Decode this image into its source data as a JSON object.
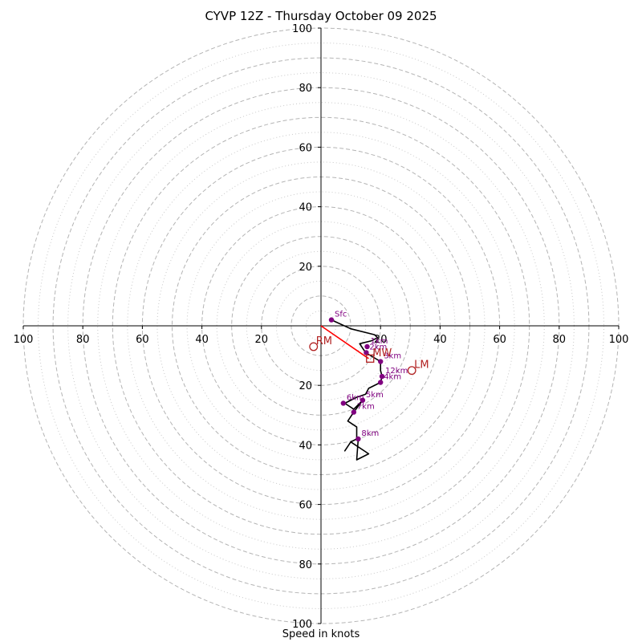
{
  "chart_data": {
    "type": "hodograph",
    "title": "CYVP 12Z - Thursday October 09 2025",
    "xlabel": "Speed in knots",
    "max_speed": 100,
    "dashed_rings": [
      10,
      20,
      30,
      40,
      50,
      60,
      70,
      80,
      90,
      100
    ],
    "dotted_rings": [
      5,
      15,
      25,
      35,
      45,
      55,
      65,
      75,
      85,
      95
    ],
    "x_ticks": [
      "100",
      "80",
      "60",
      "40",
      "20",
      "20",
      "40",
      "60",
      "80",
      "100"
    ],
    "x_tick_values": [
      -100,
      -80,
      -60,
      -40,
      -20,
      20,
      40,
      60,
      80,
      100
    ],
    "y_ticks": [
      "100",
      "80",
      "60",
      "40",
      "20",
      "20",
      "40",
      "60",
      "80",
      "100"
    ],
    "y_tick_values": [
      100,
      80,
      60,
      40,
      20,
      -20,
      -40,
      -60,
      -80,
      -100
    ],
    "hodograph_trace": {
      "color": "#000000",
      "points": [
        [
          3.5,
          2
        ],
        [
          10,
          -1
        ],
        [
          18,
          -3
        ],
        [
          19,
          -4
        ],
        [
          17,
          -5
        ],
        [
          13,
          -6
        ],
        [
          15,
          -9
        ],
        [
          20,
          -12
        ],
        [
          20,
          -15
        ],
        [
          20.5,
          -17
        ],
        [
          20,
          -19
        ],
        [
          16,
          -21
        ],
        [
          15,
          -23
        ],
        [
          12,
          -24
        ],
        [
          8,
          -26
        ],
        [
          11,
          -28
        ],
        [
          14,
          -25
        ],
        [
          11,
          -29
        ],
        [
          9,
          -32
        ],
        [
          12,
          -34
        ],
        [
          12,
          -38
        ],
        [
          10,
          -39
        ],
        [
          8,
          -42
        ],
        [
          10,
          -39
        ],
        [
          16,
          -43
        ],
        [
          12,
          -45
        ],
        [
          12.5,
          -38
        ]
      ]
    },
    "height_markers": {
      "color": "#800080",
      "points": [
        {
          "label": "Sfc",
          "u": 3.5,
          "v": 2
        },
        {
          "label": "1km",
          "u": 15.5,
          "v": -7
        },
        {
          "label": "2km",
          "u": 15.2,
          "v": -9
        },
        {
          "label": "3km",
          "u": 20,
          "v": -12
        },
        {
          "label": "4km",
          "u": 20,
          "v": -19
        },
        {
          "label": "5km",
          "u": 14,
          "v": -25
        },
        {
          "label": "6km",
          "u": 7.5,
          "v": -26
        },
        {
          "label": "7km",
          "u": 11,
          "v": -29
        },
        {
          "label": "8km",
          "u": 12.5,
          "v": -38
        },
        {
          "label": "12km",
          "u": 20.5,
          "v": -17
        }
      ]
    },
    "shear_vector": {
      "color": "#ff0000",
      "from": [
        0,
        0
      ],
      "to": [
        16,
        -11
      ]
    },
    "storm_motion": {
      "color": "#b22222",
      "points": [
        {
          "label": "RM",
          "u": -2.5,
          "v": -7,
          "marker": "circle"
        },
        {
          "label": "LM",
          "u": 30.5,
          "v": -15,
          "marker": "circle"
        },
        {
          "label": "MW",
          "u": 16.5,
          "v": -11,
          "marker": "square"
        }
      ]
    }
  }
}
